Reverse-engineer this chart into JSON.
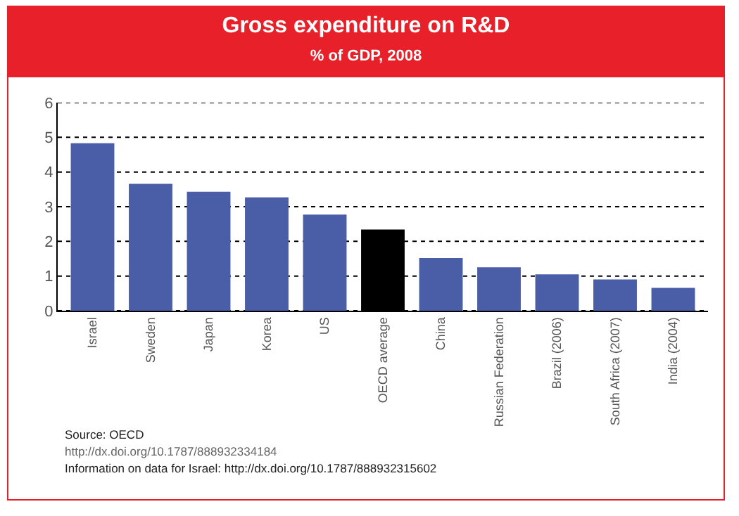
{
  "chart_data": {
    "type": "bar",
    "title": "Gross expenditure on R&D",
    "subtitle": "% of GDP, 2008",
    "categories": [
      "Israel",
      "Sweden",
      "Japan",
      "Korea",
      "US",
      "OECD average",
      "China",
      "Russian Federation",
      "Brazil (2006)",
      "South Africa (2007)",
      "India (2004)"
    ],
    "values": [
      4.83,
      3.66,
      3.43,
      3.27,
      2.77,
      2.34,
      1.52,
      1.25,
      1.05,
      0.9,
      0.66
    ],
    "colors": [
      "#4a5ea8",
      "#4a5ea8",
      "#4a5ea8",
      "#4a5ea8",
      "#4a5ea8",
      "#000000",
      "#4a5ea8",
      "#4a5ea8",
      "#4a5ea8",
      "#4a5ea8",
      "#4a5ea8"
    ],
    "ylim": [
      0,
      6
    ],
    "yticks": [
      0,
      1,
      2,
      3,
      4,
      5,
      6
    ],
    "grid": "y",
    "annotations": [
      "Source: OECD",
      "http://dx.doi.org/10.1787/888932334184",
      "Information on data for Israel: http://dx.doi.org/10.1787/888932315602"
    ]
  }
}
